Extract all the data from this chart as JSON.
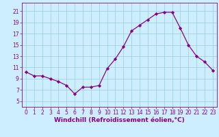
{
  "x": [
    0,
    1,
    2,
    3,
    4,
    5,
    6,
    7,
    8,
    9,
    10,
    11,
    12,
    13,
    14,
    15,
    16,
    17,
    18,
    19,
    20,
    21,
    22,
    23
  ],
  "y": [
    10.2,
    9.5,
    9.5,
    9.0,
    8.5,
    7.8,
    6.3,
    7.5,
    7.5,
    7.8,
    10.8,
    12.5,
    14.7,
    17.5,
    18.5,
    19.5,
    20.5,
    20.8,
    20.8,
    18.0,
    15.0,
    13.0,
    12.0,
    10.5
  ],
  "line_color": "#880088",
  "marker": "D",
  "marker_size": 2.2,
  "bg_color": "#cceeff",
  "grid_color": "#99ccdd",
  "xlabel": "Windchill (Refroidissement éolien,°C)",
  "xlabel_color": "#880088",
  "ylim": [
    4.0,
    22.5
  ],
  "xlim": [
    -0.5,
    23.5
  ],
  "yticks": [
    5,
    7,
    9,
    11,
    13,
    15,
    17,
    19,
    21
  ],
  "xticks": [
    0,
    1,
    2,
    3,
    4,
    5,
    6,
    7,
    8,
    9,
    10,
    11,
    12,
    13,
    14,
    15,
    16,
    17,
    18,
    19,
    20,
    21,
    22,
    23
  ],
  "tick_fontsize": 5.5,
  "xlabel_fontsize": 6.5,
  "line_width": 0.9
}
